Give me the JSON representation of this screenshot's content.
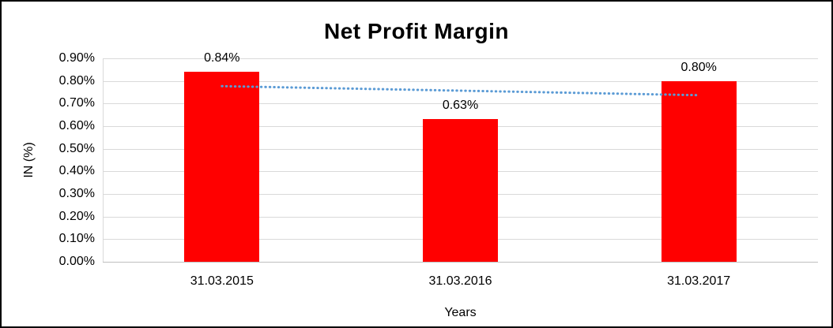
{
  "chart_data": {
    "type": "bar",
    "title": "Net Profit Margin",
    "xlabel": "Years",
    "ylabel": "IN (%)",
    "categories": [
      "31.03.2015",
      "31.03.2016",
      "31.03.2017"
    ],
    "values": [
      0.84,
      0.63,
      0.8
    ],
    "data_labels": [
      "0.84%",
      "0.63%",
      "0.80%"
    ],
    "y_ticks": [
      "0.90%",
      "0.80%",
      "0.70%",
      "0.60%",
      "0.50%",
      "0.40%",
      "0.30%",
      "0.20%",
      "0.10%",
      "0.00%"
    ],
    "ylim": [
      0,
      0.9
    ],
    "bar_color": "#ff0000",
    "gridline_color": "#d9d9d9",
    "trendline": {
      "color": "#5b9bd5",
      "style": "dotted",
      "start": 0.777,
      "end": 0.737
    },
    "legend": "none",
    "grid": "horizontal"
  }
}
